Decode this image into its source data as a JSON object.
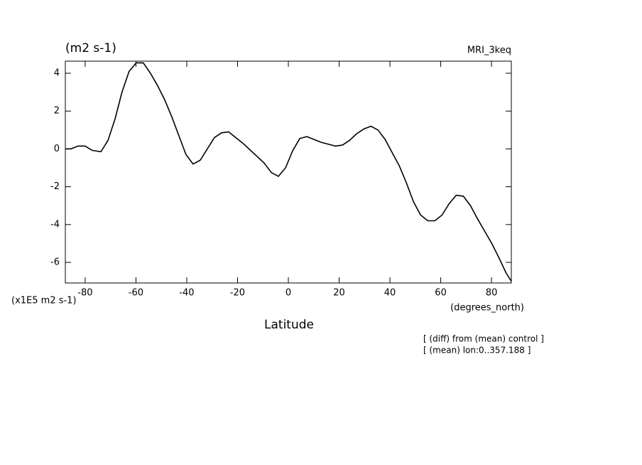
{
  "chart_data": {
    "type": "line",
    "title": "MRI_3keq",
    "units_label": "(m2 s-1)",
    "y_scale_label": "(x1E5 m2 s-1)",
    "x_units_label": "(degrees_north)",
    "xlabel": "Latitude",
    "notes": [
      "[ (diff) from (mean) control ]",
      "[ (mean) lon:0..357.188 ]"
    ],
    "xlim": [
      -87.8,
      87.8
    ],
    "ylim": [
      -7.09,
      4.64
    ],
    "xticks": [
      -80,
      -60,
      -40,
      -20,
      0,
      20,
      40,
      60,
      80
    ],
    "yticks": [
      -6,
      -4,
      -2,
      0,
      2,
      4
    ],
    "x": [
      -87.8,
      -85.6,
      -82.8,
      -80,
      -77.2,
      -73.8,
      -71,
      -68.2,
      -65.5,
      -62.7,
      -59.9,
      -57.1,
      -54.3,
      -51.5,
      -48.7,
      -45.9,
      -43.1,
      -40.3,
      -37.5,
      -34.7,
      -31.9,
      -29.1,
      -26.3,
      -23.5,
      -20.7,
      -17.9,
      -15.1,
      -12.3,
      -9.5,
      -6.7,
      -3.9,
      -1.1,
      1.7,
      4.5,
      7.3,
      10.1,
      12.9,
      15.7,
      18.5,
      21.3,
      24.1,
      26.9,
      29.7,
      32.5,
      35.3,
      38.1,
      40.9,
      43.7,
      46.5,
      49.3,
      52.1,
      54.9,
      57.7,
      60.5,
      63.3,
      66.1,
      68.9,
      71.7,
      74.5,
      77.3,
      80.1,
      82.9,
      85.7,
      87.8
    ],
    "series": [
      {
        "color": "#000000",
        "values": [
          0.0,
          0.0,
          0.15,
          0.15,
          -0.08,
          -0.15,
          0.45,
          1.6,
          3.0,
          4.1,
          4.55,
          4.55,
          4.0,
          3.35,
          2.6,
          1.7,
          0.7,
          -0.3,
          -0.8,
          -0.6,
          0.0,
          0.6,
          0.85,
          0.9,
          0.6,
          0.3,
          -0.05,
          -0.4,
          -0.75,
          -1.25,
          -1.45,
          -1.0,
          -0.1,
          0.55,
          0.65,
          0.5,
          0.35,
          0.25,
          0.15,
          0.2,
          0.45,
          0.8,
          1.05,
          1.2,
          1.0,
          0.5,
          -0.2,
          -0.9,
          -1.8,
          -2.8,
          -3.5,
          -3.8,
          -3.8,
          -3.5,
          -2.9,
          -2.45,
          -2.5,
          -3.0,
          -3.7,
          -4.35,
          -5.0,
          -5.75,
          -6.55,
          -7.0
        ]
      }
    ]
  }
}
